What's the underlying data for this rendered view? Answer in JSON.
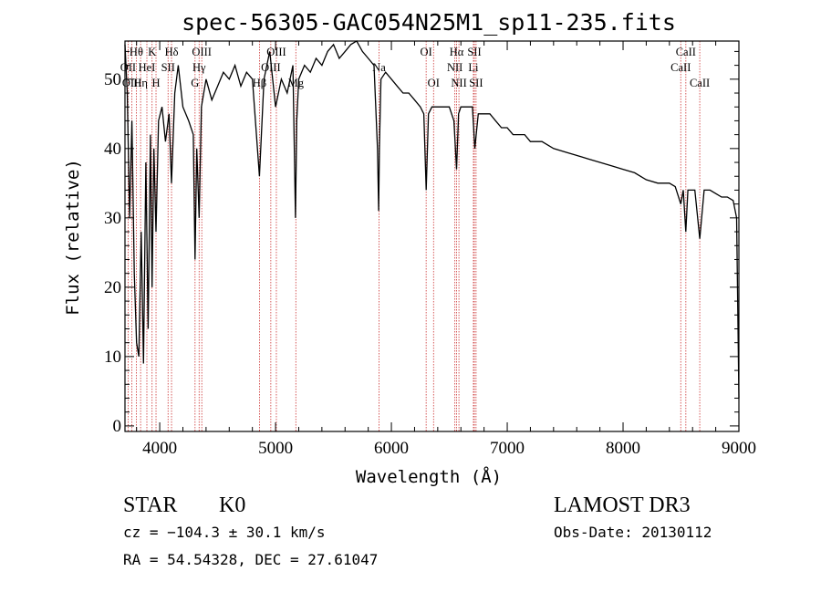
{
  "chart_data": {
    "type": "line",
    "title": "spec-56305-GAC054N25M1_sp11-235.fits",
    "xlabel": "Wavelength (Å)",
    "ylabel": "Flux (relative)",
    "xlim": [
      3700,
      9000
    ],
    "ylim": [
      -0.8,
      55.5
    ],
    "x_ticks": [
      4000,
      5000,
      6000,
      7000,
      8000,
      9000
    ],
    "x_tick_labels": [
      "4000",
      "5000",
      "6000",
      "7000",
      "8000",
      "9000"
    ],
    "y_ticks": [
      0,
      10,
      20,
      30,
      40,
      50
    ],
    "y_tick_labels": [
      "0",
      "10",
      "20",
      "30",
      "40",
      "50"
    ],
    "grid": false,
    "series": [
      {
        "name": "spectrum",
        "x": [
          3700,
          3720,
          3740,
          3760,
          3780,
          3800,
          3820,
          3840,
          3860,
          3880,
          3900,
          3920,
          3934,
          3950,
          3968,
          3990,
          4020,
          4050,
          4080,
          4102,
          4130,
          4160,
          4200,
          4250,
          4290,
          4305,
          4320,
          4340,
          4360,
          4400,
          4450,
          4500,
          4550,
          4600,
          4650,
          4700,
          4750,
          4800,
          4861,
          4900,
          4950,
          5000,
          5050,
          5100,
          5150,
          5172,
          5183,
          5200,
          5250,
          5300,
          5350,
          5400,
          5450,
          5500,
          5550,
          5600,
          5650,
          5700,
          5750,
          5800,
          5850,
          5880,
          5890,
          5896,
          5910,
          5950,
          6000,
          6050,
          6100,
          6150,
          6200,
          6250,
          6280,
          6300,
          6320,
          6350,
          6400,
          6450,
          6500,
          6540,
          6563,
          6580,
          6600,
          6650,
          6700,
          6720,
          6750,
          6800,
          6850,
          6900,
          6950,
          7000,
          7050,
          7100,
          7150,
          7200,
          7300,
          7400,
          7500,
          7600,
          7700,
          7800,
          7900,
          8000,
          8100,
          8200,
          8300,
          8400,
          8450,
          8498,
          8520,
          8542,
          8560,
          8600,
          8620,
          8662,
          8700,
          8750,
          8800,
          8850,
          8900,
          8950,
          8980,
          9000
        ],
        "y": [
          55,
          48,
          30,
          44,
          22,
          12,
          10,
          28,
          9,
          38,
          14,
          42,
          20,
          40,
          28,
          44,
          46,
          41,
          45,
          35,
          48,
          52,
          46,
          44,
          42,
          24,
          40,
          30,
          46,
          50,
          47,
          49,
          51,
          50,
          52,
          49,
          51,
          50,
          36,
          50,
          54,
          46,
          50,
          48,
          52,
          30,
          44,
          50,
          52,
          51,
          53,
          52,
          54,
          55,
          53,
          54,
          55,
          56,
          54,
          53,
          52,
          40,
          31,
          40,
          50,
          51,
          50,
          49,
          48,
          48,
          47,
          46,
          45,
          34,
          45,
          46,
          46,
          46,
          46,
          44,
          37,
          45,
          46,
          46,
          46,
          40,
          45,
          45,
          45,
          44,
          43,
          43,
          42,
          42,
          42,
          41,
          41,
          40,
          39.5,
          39,
          38.5,
          38,
          37.5,
          37,
          36.5,
          35.5,
          35,
          35,
          34.5,
          32,
          34,
          28,
          34,
          34,
          34,
          27,
          34,
          34,
          33.5,
          33,
          33,
          32.5,
          30,
          4
        ]
      }
    ],
    "annotations": [
      {
        "label": "Hθ",
        "wavelength": 3798,
        "row": 1
      },
      {
        "label": "K",
        "wavelength": 3934,
        "row": 1
      },
      {
        "label": "Hδ",
        "wavelength": 4102,
        "row": 1
      },
      {
        "label": "OIII",
        "wavelength": 4363,
        "row": 1
      },
      {
        "label": "OIII",
        "wavelength": 5007,
        "row": 1
      },
      {
        "label": "OI",
        "wavelength": 6300,
        "row": 1
      },
      {
        "label": "Hα",
        "wavelength": 6563,
        "row": 1
      },
      {
        "label": "SII",
        "wavelength": 6716,
        "row": 1
      },
      {
        "label": "CaII",
        "wavelength": 8542,
        "row": 1
      },
      {
        "label": "OII",
        "wavelength": 3727,
        "row": 2
      },
      {
        "label": "HeI",
        "wavelength": 3889,
        "row": 2
      },
      {
        "label": "SII",
        "wavelength": 4072,
        "row": 2
      },
      {
        "label": "Hγ",
        "wavelength": 4340,
        "row": 2
      },
      {
        "label": "OIII",
        "wavelength": 4959,
        "row": 2
      },
      {
        "label": "Na",
        "wavelength": 5893,
        "row": 2
      },
      {
        "label": "NII",
        "wavelength": 6548,
        "row": 2
      },
      {
        "label": "Li",
        "wavelength": 6708,
        "row": 2
      },
      {
        "label": "CaII",
        "wavelength": 8498,
        "row": 2
      },
      {
        "label": "OIII",
        "wavelength": 3760,
        "row": 3
      },
      {
        "label": "Hη",
        "wavelength": 3835,
        "row": 3
      },
      {
        "label": "H",
        "wavelength": 3968,
        "row": 3
      },
      {
        "label": "G",
        "wavelength": 4305,
        "row": 3
      },
      {
        "label": "Hβ",
        "wavelength": 4861,
        "row": 3
      },
      {
        "label": "Mg",
        "wavelength": 5175,
        "row": 3
      },
      {
        "label": "OI",
        "wavelength": 6364,
        "row": 3
      },
      {
        "label": "NII",
        "wavelength": 6583,
        "row": 3
      },
      {
        "label": "SII",
        "wavelength": 6731,
        "row": 3
      },
      {
        "label": "CaII",
        "wavelength": 8662,
        "row": 3
      }
    ],
    "marker_lines": [
      3727,
      3760,
      3798,
      3835,
      3889,
      3934,
      3968,
      4072,
      4102,
      4305,
      4340,
      4363,
      4861,
      4959,
      5007,
      5175,
      5893,
      6300,
      6364,
      6548,
      6563,
      6583,
      6708,
      6716,
      6731,
      8498,
      8542,
      8662
    ]
  },
  "info": {
    "object_class": "STAR",
    "subclass": "K0",
    "survey": "LAMOST DR3",
    "cz": "cz = −104.3 ± 30.1 km/s",
    "obs_date": "Obs-Date: 20130112",
    "coords": "RA =  54.54328, DEC =  27.61047"
  },
  "colors": {
    "spectrum": "#000000",
    "marker_lines": "#cc3333",
    "axes": "#000000"
  }
}
